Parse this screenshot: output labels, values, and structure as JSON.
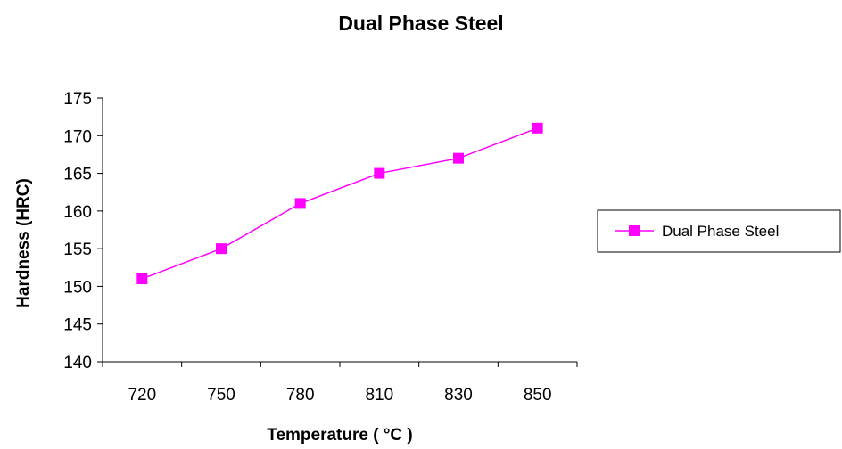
{
  "chart_data": {
    "type": "line",
    "title": "Dual Phase Steel",
    "xlabel": "Temperature ( °C )",
    "ylabel": "Hardness (HRC)",
    "categories": [
      "720",
      "750",
      "780",
      "810",
      "830",
      "850"
    ],
    "series": [
      {
        "name": "Dual Phase Steel",
        "values": [
          151,
          155,
          161,
          165,
          167,
          171
        ],
        "color": "#ff00ff",
        "marker": "square"
      }
    ],
    "ylim": [
      140,
      175
    ],
    "yticks": [
      140,
      145,
      150,
      155,
      160,
      165,
      170,
      175
    ],
    "grid": false,
    "legend": "right"
  }
}
